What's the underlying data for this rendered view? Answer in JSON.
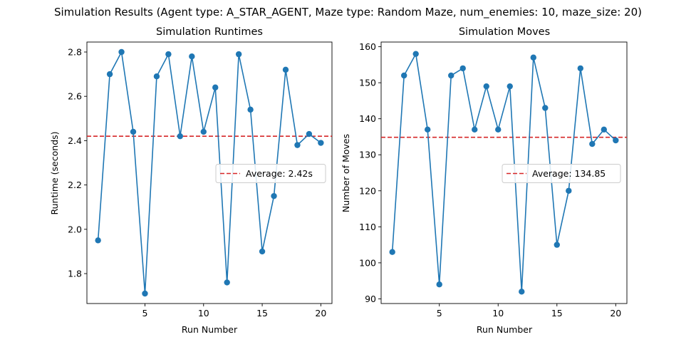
{
  "figure": {
    "suptitle": "Simulation Results (Agent type: A_STAR_AGENT, Maze type: Random Maze, num_enemies: 10, maze_size: 20)"
  },
  "chart_data": [
    {
      "type": "line",
      "title": "Simulation Runtimes",
      "xlabel": "Run Number",
      "ylabel": "Runtime (seconds)",
      "x": [
        1,
        2,
        3,
        4,
        5,
        6,
        7,
        8,
        9,
        10,
        11,
        12,
        13,
        14,
        15,
        16,
        17,
        18,
        19,
        20
      ],
      "series": [
        {
          "name": "",
          "color": "#1f77b4",
          "marker": "circle",
          "values": [
            1.95,
            2.7,
            2.8,
            2.44,
            1.71,
            2.69,
            2.79,
            2.42,
            2.78,
            2.44,
            2.64,
            1.76,
            2.79,
            2.54,
            1.9,
            2.15,
            2.72,
            2.38,
            2.43,
            2.39
          ]
        }
      ],
      "average_line": {
        "value": 2.42,
        "label": "Average: 2.42s",
        "color": "#d62728",
        "style": "dashed"
      },
      "xlim": [
        0.05,
        20.95
      ],
      "ylim": [
        1.665,
        2.845
      ],
      "xticks": [
        5,
        10,
        15,
        20
      ],
      "xtick_labels": [
        "5",
        "10",
        "15",
        "20"
      ],
      "yticks": [
        1.8,
        2.0,
        2.2,
        2.4,
        2.6,
        2.8
      ],
      "ytick_labels": [
        "1.8",
        "2.0",
        "2.2",
        "2.4",
        "2.6",
        "2.8"
      ],
      "legend_position": "center-right",
      "grid": false
    },
    {
      "type": "line",
      "title": "Simulation Moves",
      "xlabel": "Run Number",
      "ylabel": "Number of Moves",
      "x": [
        1,
        2,
        3,
        4,
        5,
        6,
        7,
        8,
        9,
        10,
        11,
        12,
        13,
        14,
        15,
        16,
        17,
        18,
        19,
        20
      ],
      "series": [
        {
          "name": "",
          "color": "#1f77b4",
          "marker": "circle",
          "values": [
            103,
            152,
            158,
            137,
            94,
            152,
            154,
            137,
            149,
            137,
            149,
            92,
            157,
            143,
            105,
            120,
            154,
            133,
            137,
            134
          ]
        }
      ],
      "average_line": {
        "value": 134.85,
        "label": "Average: 134.85",
        "color": "#d62728",
        "style": "dashed"
      },
      "xlim": [
        0.05,
        20.95
      ],
      "ylim": [
        88.7,
        161.3
      ],
      "xticks": [
        5,
        10,
        15,
        20
      ],
      "xtick_labels": [
        "5",
        "10",
        "15",
        "20"
      ],
      "yticks": [
        90,
        100,
        110,
        120,
        130,
        140,
        150,
        160
      ],
      "ytick_labels": [
        "90",
        "100",
        "110",
        "120",
        "130",
        "140",
        "150",
        "160"
      ],
      "legend_position": "center-right",
      "grid": false
    }
  ]
}
